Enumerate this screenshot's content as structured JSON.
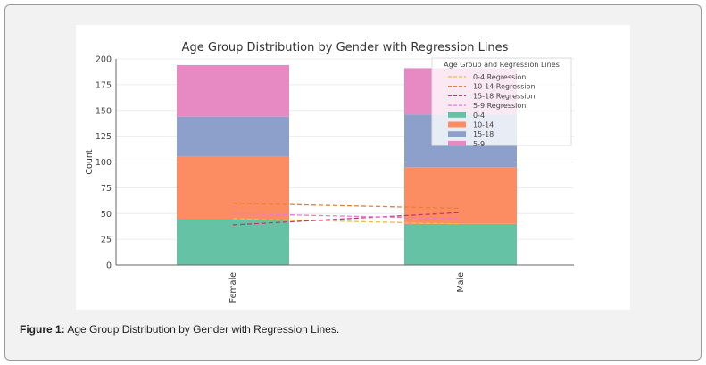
{
  "caption": {
    "label": "Figure 1:",
    "text": " Age Group Distribution by Gender with Regression Lines."
  },
  "chart_data": {
    "type": "bar",
    "stacked": true,
    "title": "Age Group Distribution by Gender with Regression Lines",
    "xlabel": "",
    "ylabel": "Count",
    "categories": [
      "Female",
      "Male"
    ],
    "ylim": [
      0,
      200
    ],
    "yticks": [
      0,
      25,
      50,
      75,
      100,
      125,
      150,
      175,
      200
    ],
    "grid": true,
    "series": [
      {
        "name": "0-4",
        "values": [
          45,
          40
        ],
        "color": "#66c2a5"
      },
      {
        "name": "10-14",
        "values": [
          60,
          55
        ],
        "color": "#fc8d62"
      },
      {
        "name": "15-18",
        "values": [
          39,
          51
        ],
        "color": "#8da0cb"
      },
      {
        "name": "5-9",
        "values": [
          50,
          45
        ],
        "color": "#e78ac3"
      }
    ],
    "regression_lines": [
      {
        "name": "0-4 Regression",
        "values": [
          45,
          40
        ],
        "color": "#f5b942"
      },
      {
        "name": "10-14 Regression",
        "values": [
          60,
          55
        ],
        "color": "#e8803a"
      },
      {
        "name": "15-18 Regression",
        "values": [
          39,
          51
        ],
        "color": "#c8386a"
      },
      {
        "name": "5-9 Regression",
        "values": [
          50,
          45
        ],
        "color": "#e87ad8"
      }
    ],
    "legend": {
      "title": "Age Group and Regression Lines",
      "placement": "top-right"
    }
  }
}
